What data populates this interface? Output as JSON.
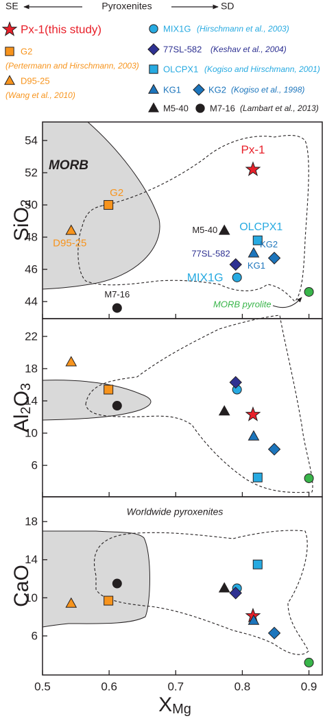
{
  "header": {
    "left": "SE",
    "center": "Pyroxenites",
    "right": "SD"
  },
  "legend": [
    {
      "label": "Px-1(this study)",
      "marker": "star",
      "color": "#e8202a"
    },
    {
      "label": "G2",
      "citation": "(Pertermann and Hirschmann, 2003)",
      "marker": "square",
      "color": "#f7941d"
    },
    {
      "label": "D95-25",
      "citation": "(Wang et al., 2010)",
      "marker": "triangle",
      "color": "#f7941d"
    },
    {
      "label": "MIX1G",
      "citation": "(Hirschmann et al., 2003)",
      "marker": "circle",
      "color": "#27aae1"
    },
    {
      "label": "77SL-582",
      "citation": "(Keshav et al., 2004)",
      "marker": "diamond",
      "color": "#2e3192"
    },
    {
      "label": "OLCPX1",
      "citation": "(Kogiso and Hirschmann, 2001)",
      "marker": "square",
      "color": "#27aae1"
    },
    {
      "label": "KG1",
      "marker": "triangle",
      "color": "#1c75bc"
    },
    {
      "label": "KG2",
      "citation": "(Kogiso et al., 1998)",
      "marker": "diamond",
      "color": "#1c75bc"
    },
    {
      "label": "M5-40",
      "marker": "triangle",
      "color": "#231f20"
    },
    {
      "label": "M7-16",
      "citation": "(Lambart et al., 2013)",
      "marker": "circle",
      "color": "#231f20"
    }
  ],
  "chart_data": [
    {
      "type": "scatter",
      "ylabel": [
        {
          "text": "SiO"
        },
        {
          "text": "2",
          "sub": true
        }
      ],
      "xlim": [
        0.5,
        0.92
      ],
      "xticks": [
        0.5,
        0.6,
        0.7,
        0.8,
        0.9
      ],
      "ylim": [
        42.94,
        55.15
      ],
      "yticks": [
        44,
        46,
        48,
        50,
        52,
        54
      ],
      "annotations": [
        "MORB"
      ],
      "series": [
        {
          "name": "Px-1",
          "marker": "star",
          "color": "#e8202a",
          "x": [
            0.816
          ],
          "values": [
            52.2
          ]
        },
        {
          "name": "G2",
          "marker": "square",
          "color": "#f7941d",
          "x": [
            0.599
          ],
          "values": [
            50.0
          ]
        },
        {
          "name": "D95-25",
          "marker": "triangle",
          "color": "#f7941d",
          "x": [
            0.543
          ],
          "values": [
            48.4
          ]
        },
        {
          "name": "MIX1G",
          "marker": "circle",
          "color": "#27aae1",
          "x": [
            0.792
          ],
          "values": [
            45.5
          ]
        },
        {
          "name": "77SL-582",
          "marker": "diamond",
          "color": "#2e3192",
          "x": [
            0.79
          ],
          "values": [
            46.3
          ]
        },
        {
          "name": "OLCPX1",
          "marker": "square",
          "color": "#27aae1",
          "x": [
            0.823
          ],
          "values": [
            47.8
          ]
        },
        {
          "name": "KG1",
          "marker": "triangle",
          "color": "#1c75bc",
          "x": [
            0.817
          ],
          "values": [
            47.0
          ]
        },
        {
          "name": "KG2",
          "marker": "diamond",
          "color": "#1c75bc",
          "x": [
            0.848
          ],
          "values": [
            46.7
          ]
        },
        {
          "name": "M5-40",
          "marker": "triangle",
          "color": "#231f20",
          "x": [
            0.773
          ],
          "values": [
            48.4
          ]
        },
        {
          "name": "M7-16",
          "marker": "circle",
          "color": "#231f20",
          "x": [
            0.612
          ],
          "values": [
            43.6
          ]
        },
        {
          "name": "MORB pyrolite",
          "marker": "circle",
          "color": "#39b54a",
          "x": [
            0.9
          ],
          "values": [
            44.6
          ]
        }
      ]
    },
    {
      "type": "scatter",
      "ylabel": [
        {
          "text": "Al"
        },
        {
          "text": "2",
          "sub": true
        },
        {
          "text": "O"
        },
        {
          "text": "3",
          "sub": true
        }
      ],
      "xlim": [
        0.5,
        0.92
      ],
      "xticks": [
        0.5,
        0.6,
        0.7,
        0.8,
        0.9
      ],
      "ylim": [
        2.1,
        24.2
      ],
      "yticks": [
        6,
        10,
        14,
        18,
        22
      ],
      "series": [
        {
          "marker": "star",
          "color": "#e8202a",
          "x": [
            0.816
          ],
          "values": [
            12.3
          ]
        },
        {
          "marker": "square",
          "color": "#f7941d",
          "x": [
            0.599
          ],
          "values": [
            15.4
          ]
        },
        {
          "marker": "triangle",
          "color": "#f7941d",
          "x": [
            0.543
          ],
          "values": [
            18.8
          ]
        },
        {
          "marker": "circle",
          "color": "#27aae1",
          "x": [
            0.792
          ],
          "values": [
            15.4
          ]
        },
        {
          "marker": "diamond",
          "color": "#2e3192",
          "x": [
            0.79
          ],
          "values": [
            16.3
          ]
        },
        {
          "marker": "square",
          "color": "#27aae1",
          "x": [
            0.823
          ],
          "values": [
            4.5
          ]
        },
        {
          "marker": "triangle",
          "color": "#1c75bc",
          "x": [
            0.817
          ],
          "values": [
            9.6
          ]
        },
        {
          "marker": "diamond",
          "color": "#1c75bc",
          "x": [
            0.848
          ],
          "values": [
            8.0
          ]
        },
        {
          "marker": "triangle",
          "color": "#231f20",
          "x": [
            0.773
          ],
          "values": [
            12.7
          ]
        },
        {
          "marker": "circle",
          "color": "#231f20",
          "x": [
            0.612
          ],
          "values": [
            13.4
          ]
        },
        {
          "marker": "circle",
          "color": "#39b54a",
          "x": [
            0.9
          ],
          "values": [
            4.4
          ]
        }
      ]
    },
    {
      "type": "scatter",
      "ylabel": [
        {
          "text": "CaO"
        }
      ],
      "xlabel": [
        {
          "text": "X"
        },
        {
          "text": "Mg",
          "sub": true
        }
      ],
      "xlim": [
        0.5,
        0.92
      ],
      "xticks": [
        0.5,
        0.6,
        0.7,
        0.8,
        0.9
      ],
      "ylim": [
        1.9,
        20.6
      ],
      "yticks": [
        6,
        10,
        14,
        18
      ],
      "annotations": [
        "Worldwide pyroxenites"
      ],
      "series": [
        {
          "marker": "star",
          "color": "#e8202a",
          "x": [
            0.816
          ],
          "values": [
            8.1
          ]
        },
        {
          "marker": "square",
          "color": "#f7941d",
          "x": [
            0.599
          ],
          "values": [
            9.7
          ]
        },
        {
          "marker": "triangle",
          "color": "#f7941d",
          "x": [
            0.543
          ],
          "values": [
            9.4
          ]
        },
        {
          "marker": "circle",
          "color": "#27aae1",
          "x": [
            0.792
          ],
          "values": [
            11.0
          ]
        },
        {
          "marker": "diamond",
          "color": "#2e3192",
          "x": [
            0.79
          ],
          "values": [
            10.5
          ]
        },
        {
          "marker": "square",
          "color": "#27aae1",
          "x": [
            0.823
          ],
          "values": [
            13.5
          ]
        },
        {
          "marker": "triangle",
          "color": "#1c75bc",
          "x": [
            0.817
          ],
          "values": [
            7.6
          ]
        },
        {
          "marker": "diamond",
          "color": "#1c75bc",
          "x": [
            0.848
          ],
          "values": [
            6.3
          ]
        },
        {
          "marker": "triangle",
          "color": "#231f20",
          "x": [
            0.773
          ],
          "values": [
            11.0
          ]
        },
        {
          "marker": "circle",
          "color": "#231f20",
          "x": [
            0.612
          ],
          "values": [
            11.5
          ]
        },
        {
          "marker": "circle",
          "color": "#39b54a",
          "x": [
            0.9
          ],
          "values": [
            3.2
          ]
        }
      ]
    }
  ]
}
